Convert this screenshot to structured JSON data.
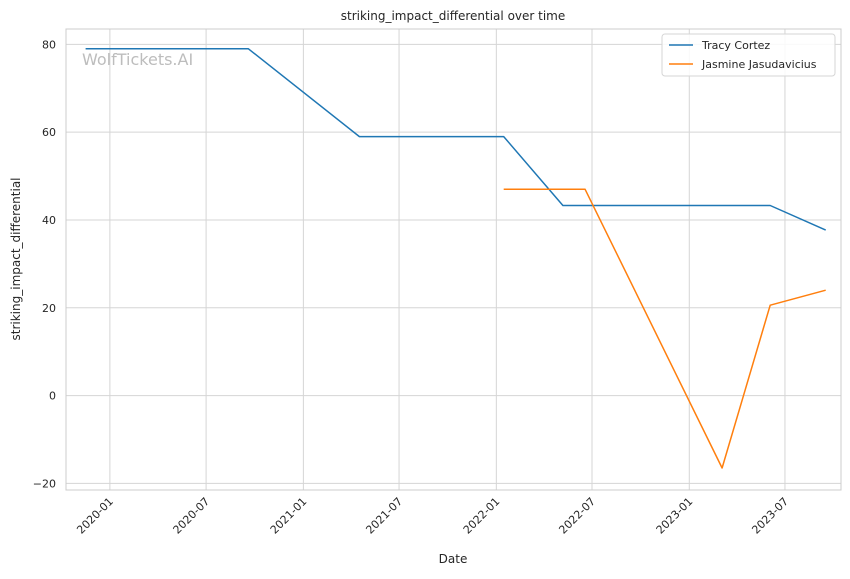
{
  "chart_data": {
    "type": "line",
    "title": "striking_impact_differential over time",
    "xlabel": "Date",
    "ylabel": "striking_impact_differential",
    "watermark": "WolfTickets.AI",
    "x_ticks": [
      "2020-01",
      "2020-07",
      "2021-01",
      "2021-07",
      "2022-01",
      "2022-07",
      "2023-01",
      "2023-07"
    ],
    "y_ticks": [
      -20,
      0,
      20,
      40,
      60,
      80
    ],
    "ylim": [
      -21.5,
      83.5
    ],
    "xlim": [
      "2019-10-10",
      "2023-10-15"
    ],
    "grid": true,
    "legend_position": "top-right",
    "series": [
      {
        "name": "Tracy Cortez",
        "color": "#1f77b4",
        "points": [
          {
            "x": "2019-11-16",
            "y": 79
          },
          {
            "x": "2020-09-19",
            "y": 79
          },
          {
            "x": "2021-04-17",
            "y": 59
          },
          {
            "x": "2022-01-15",
            "y": 59
          },
          {
            "x": "2022-05-07",
            "y": 43.3
          },
          {
            "x": "2023-06-03",
            "y": 43.3
          },
          {
            "x": "2023-09-16",
            "y": 37.7
          }
        ]
      },
      {
        "name": "Jasmine Jasudavicius",
        "color": "#ff7f0e",
        "points": [
          {
            "x": "2022-01-15",
            "y": 47
          },
          {
            "x": "2022-06-18",
            "y": 47
          },
          {
            "x": "2023-03-04",
            "y": -16.5
          },
          {
            "x": "2023-06-03",
            "y": 20.6
          },
          {
            "x": "2023-09-16",
            "y": 24
          }
        ]
      }
    ]
  }
}
